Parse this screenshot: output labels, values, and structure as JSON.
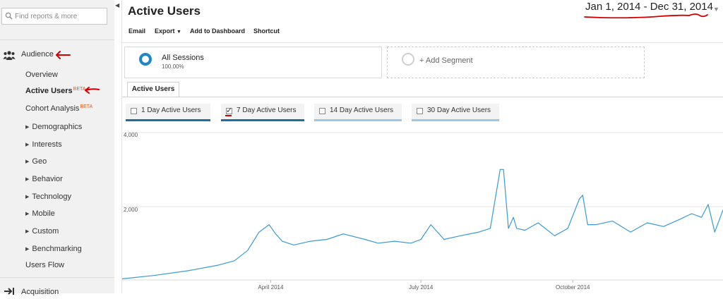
{
  "search": {
    "placeholder": "Find reports & more"
  },
  "sidebar": {
    "audience_label": "Audience",
    "items": [
      {
        "label": "Overview",
        "beta": ""
      },
      {
        "label": "Active Users",
        "beta": "BETA"
      },
      {
        "label": "Cohort Analysis",
        "beta": "BETA"
      },
      {
        "label": "Demographics",
        "expandable": true
      },
      {
        "label": "Interests",
        "expandable": true
      },
      {
        "label": "Geo",
        "expandable": true
      },
      {
        "label": "Behavior",
        "expandable": true
      },
      {
        "label": "Technology",
        "expandable": true
      },
      {
        "label": "Mobile",
        "expandable": true
      },
      {
        "label": "Custom",
        "expandable": true
      },
      {
        "label": "Benchmarking",
        "expandable": true
      },
      {
        "label": "Users Flow",
        "expandable": false
      }
    ],
    "acquisition_label": "Acquisition"
  },
  "header": {
    "title": "Active Users",
    "date_range": "Jan 1, 2014 - Dec 31, 2014"
  },
  "toolbar": {
    "email": "Email",
    "export": "Export",
    "add_to_dashboard": "Add to Dashboard",
    "shortcut": "Shortcut"
  },
  "segments": {
    "all_sessions": "All Sessions",
    "all_sessions_pct": "100.00%",
    "add_segment": "+ Add Segment"
  },
  "tab": {
    "label": "Active Users"
  },
  "metrics": [
    {
      "label": "1 Day Active Users",
      "checked": false
    },
    {
      "label": "7 Day Active Users",
      "checked": true
    },
    {
      "label": "14 Day Active Users",
      "checked": false
    },
    {
      "label": "30 Day Active Users",
      "checked": false
    }
  ],
  "colors": {
    "line": "#3a9ad0",
    "accent": "#1f86c8",
    "annotation": "#d40000",
    "beta": "#e25b1b"
  },
  "chart_data": {
    "type": "line",
    "series": [
      {
        "name": "7 Day Active Users",
        "x": [
          "2014-01-01",
          "2014-01-20",
          "2014-02-10",
          "2014-02-28",
          "2014-03-10",
          "2014-03-18",
          "2014-03-25",
          "2014-03-31",
          "2014-04-04",
          "2014-04-08",
          "2014-04-15",
          "2014-04-25",
          "2014-05-05",
          "2014-05-15",
          "2014-05-28",
          "2014-06-05",
          "2014-06-15",
          "2014-06-25",
          "2014-07-01",
          "2014-07-07",
          "2014-07-15",
          "2014-07-25",
          "2014-08-05",
          "2014-08-12",
          "2014-08-18",
          "2014-08-20",
          "2014-08-23",
          "2014-08-26",
          "2014-08-28",
          "2014-09-02",
          "2014-09-10",
          "2014-09-20",
          "2014-09-28",
          "2014-10-05",
          "2014-10-07",
          "2014-10-10",
          "2014-10-15",
          "2014-10-25",
          "2014-11-05",
          "2014-11-15",
          "2014-11-25",
          "2014-12-05",
          "2014-12-12",
          "2014-12-18",
          "2014-12-22",
          "2014-12-26",
          "2014-12-31"
        ],
        "values": [
          30,
          120,
          250,
          400,
          520,
          800,
          1300,
          1500,
          1250,
          1050,
          950,
          1050,
          1100,
          1250,
          1100,
          1000,
          1050,
          1000,
          1100,
          1500,
          1100,
          1200,
          1300,
          1400,
          3000,
          3000,
          1400,
          1700,
          1400,
          1350,
          1550,
          1200,
          1400,
          2200,
          2300,
          1500,
          1500,
          1600,
          1300,
          1550,
          1450,
          1650,
          1800,
          1700,
          2050,
          1300,
          1900
        ]
      }
    ],
    "y_ticks": [
      "4,000",
      "2,000"
    ],
    "x_ticks": [
      {
        "label": "April 2014",
        "date": "2014-04-01"
      },
      {
        "label": "July 2014",
        "date": "2014-07-01"
      },
      {
        "label": "October 2014",
        "date": "2014-10-01"
      }
    ],
    "ylim": [
      0,
      4000
    ],
    "xlim": [
      "2014-01-01",
      "2014-12-31"
    ],
    "grid": true
  }
}
